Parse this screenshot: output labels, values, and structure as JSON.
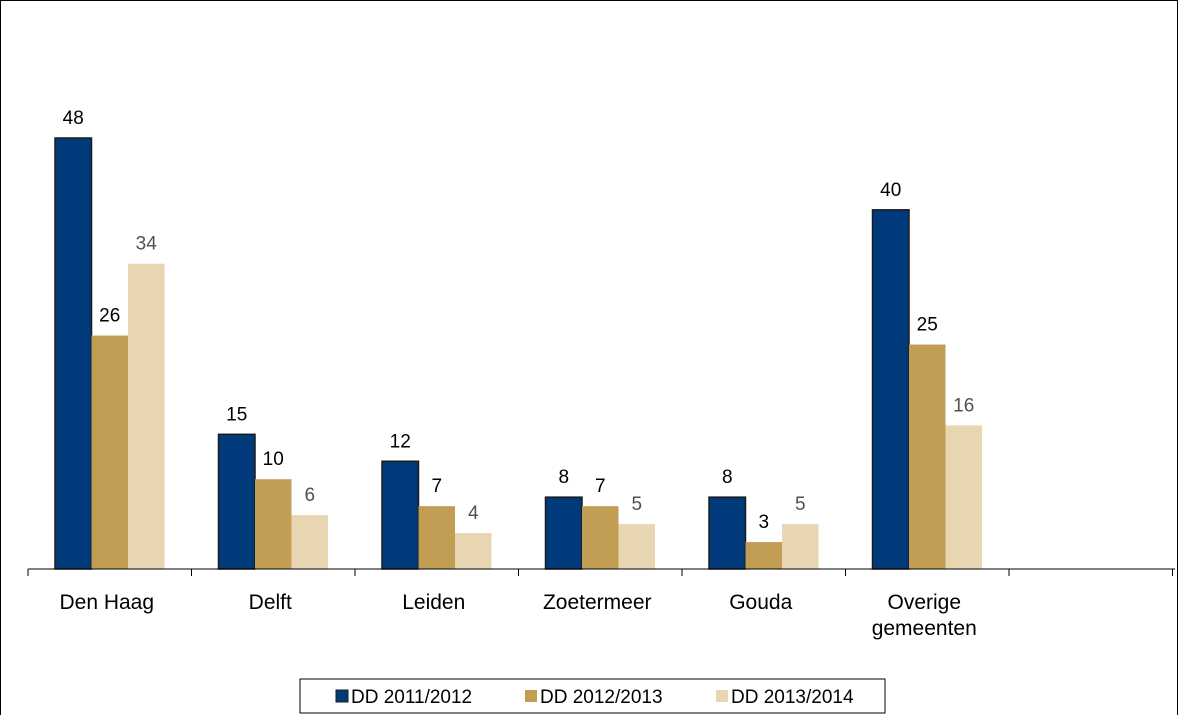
{
  "chart_data": {
    "type": "bar",
    "categories": [
      "Den Haag",
      "Delft",
      "Leiden",
      "Zoetermeer",
      "Gouda",
      "Overige gemeenten"
    ],
    "series": [
      {
        "name": "DD 2011/2012",
        "values": [
          48,
          15,
          12,
          8,
          8,
          40
        ],
        "color": "#003A7A"
      },
      {
        "name": "DD 2012/2013",
        "values": [
          26,
          10,
          7,
          7,
          3,
          25
        ],
        "color": "#C29E55"
      },
      {
        "name": "DD 2013/2014",
        "values": [
          34,
          6,
          4,
          5,
          5,
          16
        ],
        "color": "#E8D6B3"
      }
    ],
    "title": "",
    "xlabel": "",
    "ylabel": "",
    "ylim": [
      0,
      48
    ],
    "grid": false,
    "legend": "bottom-center",
    "label_colors": [
      "#000000",
      "#000000",
      "#505050"
    ]
  }
}
